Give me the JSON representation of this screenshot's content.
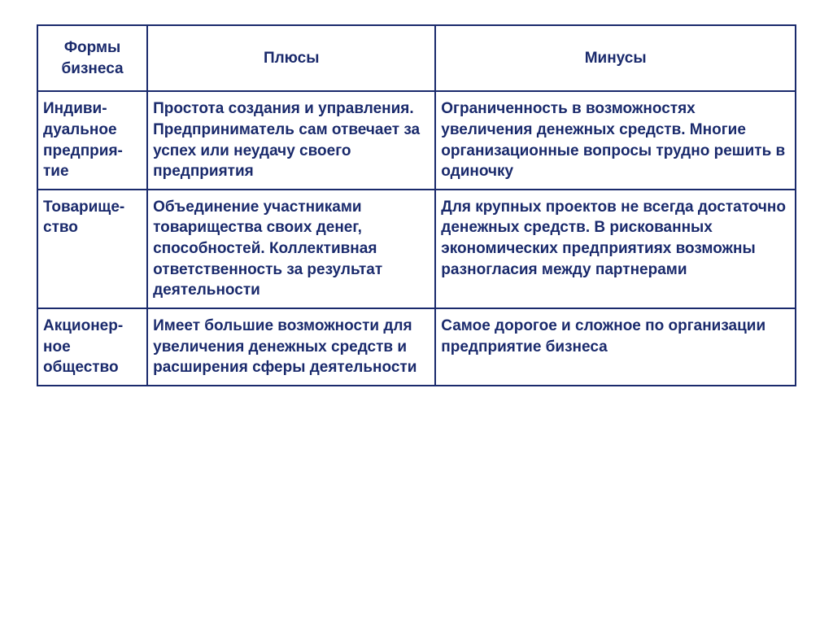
{
  "table": {
    "text_color": "#1a2a6c",
    "border_color": "#1a2a6c",
    "background_color": "#ffffff",
    "font_family": "Arial",
    "font_weight": "bold",
    "header_fontsize": 19,
    "cell_fontsize": 19,
    "column_widths_pct": [
      14.5,
      38,
      47.5
    ],
    "columns": [
      "Формы бизнеса",
      "Плюсы",
      "Минусы"
    ],
    "rows": [
      {
        "form": "Индиви-дуальное предприя-тие",
        "plus": "Простота создания и управления. Предприниматель сам отвечает за успех или неудачу своего предприятия",
        "minus": "Ограниченность в возможностях увеличения денежных средств. Многие организационные вопросы трудно решить в одиночку"
      },
      {
        "form": "Товарище-ство",
        "plus": "Объединение участниками товарищества своих денег, способностей. Коллективная ответственность за результат деятельности",
        "minus": "Для крупных проектов не всегда достаточно денежных средств. В рискованных экономических предприятиях возможны разногласия между партнерами"
      },
      {
        "form": "Акционер-ное общество",
        "plus": "Имеет большие возможности для увеличения денежных средств и расширения сферы деятельности",
        "minus": "Самое дорогое и сложное по организации предприятие бизнеса"
      }
    ]
  }
}
